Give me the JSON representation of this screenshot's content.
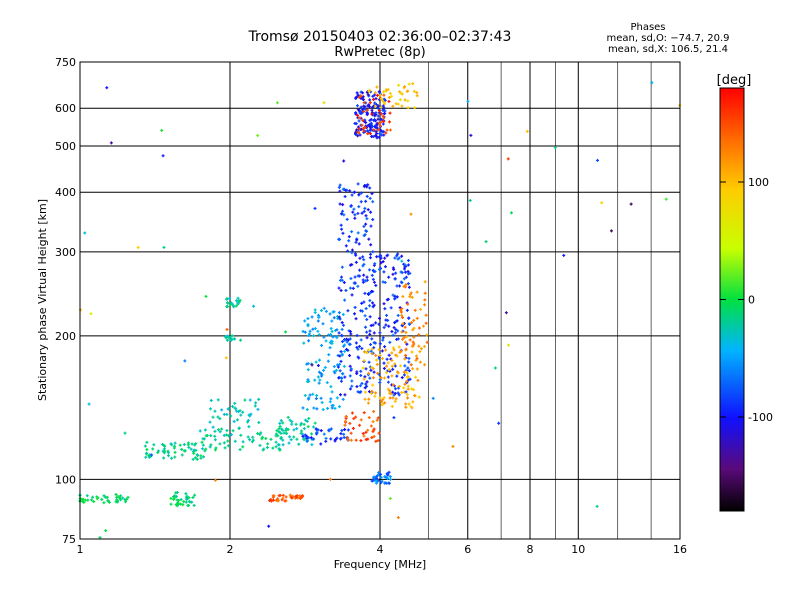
{
  "chart_data": {
    "type": "scatter",
    "title": "Tromsø 20150403 02:36:00–02:37:43",
    "subtitle": "RwPretec (8p)",
    "xlabel": "Frequency [MHz]",
    "ylabel": "Stationary phase Virtual Height [km]",
    "x_scale": "log",
    "y_scale": "log",
    "xlim": [
      1,
      16
    ],
    "ylim": [
      75,
      750
    ],
    "x_ticks": [
      1,
      2,
      4,
      6,
      8,
      10,
      16
    ],
    "y_ticks": [
      75,
      100,
      200,
      300,
      400,
      500,
      600,
      750
    ],
    "grid": true,
    "stats": {
      "heading": "Phases",
      "line_o": "mean, sd,O: −74.7, 20.9",
      "line_x": "mean, sd,X: 106.5, 21.4"
    },
    "colorbar": {
      "label": "[deg]",
      "range": [
        -180,
        180
      ],
      "ticks": [
        100,
        0,
        -100
      ]
    },
    "clusters": [
      {
        "x": [
          0.95,
          1.25
        ],
        "y": [
          89,
          93
        ],
        "phase": -10,
        "n": 45
      },
      {
        "x": [
          1.5,
          1.7
        ],
        "y": [
          88,
          94
        ],
        "phase": -15,
        "n": 35
      },
      {
        "x": [
          2.4,
          2.8
        ],
        "y": [
          90,
          93
        ],
        "phase": 145,
        "n": 40
      },
      {
        "x": [
          1.35,
          1.8
        ],
        "y": [
          110,
          120
        ],
        "phase": -20,
        "n": 60
      },
      {
        "x": [
          1.7,
          2.6
        ],
        "y": [
          115,
          128
        ],
        "phase": -25,
        "n": 70
      },
      {
        "x": [
          2.5,
          3.0
        ],
        "y": [
          118,
          135
        ],
        "phase": -30,
        "n": 50
      },
      {
        "x": [
          1.8,
          2.3
        ],
        "y": [
          128,
          148
        ],
        "phase": -40,
        "n": 40
      },
      {
        "x": [
          2.8,
          3.5
        ],
        "y": [
          118,
          128
        ],
        "phase": -95,
        "n": 40
      },
      {
        "x": [
          3.4,
          4.0
        ],
        "y": [
          120,
          140
        ],
        "phase": 150,
        "n": 40
      },
      {
        "x": [
          1.95,
          2.1
        ],
        "y": [
          230,
          240
        ],
        "phase": -30,
        "n": 20
      },
      {
        "x": [
          1.95,
          2.1
        ],
        "y": [
          195,
          200
        ],
        "phase": -30,
        "n": 15
      },
      {
        "x": [
          2.8,
          3.4
        ],
        "y": [
          140,
          230
        ],
        "phase": -60,
        "n": 120
      },
      {
        "x": [
          3.3,
          3.9
        ],
        "y": [
          150,
          420
        ],
        "phase": -100,
        "n": 220
      },
      {
        "x": [
          3.8,
          4.6
        ],
        "y": [
          150,
          300
        ],
        "phase": -100,
        "n": 160
      },
      {
        "x": [
          3.7,
          4.8
        ],
        "y": [
          140,
          190
        ],
        "phase": 110,
        "n": 100
      },
      {
        "x": [
          4.4,
          5.0
        ],
        "y": [
          170,
          260
        ],
        "phase": 125,
        "n": 60
      },
      {
        "x": [
          3.55,
          4.1
        ],
        "y": [
          520,
          650
        ],
        "phase": -110,
        "n": 160
      },
      {
        "x": [
          3.6,
          4.2
        ],
        "y": [
          530,
          640
        ],
        "phase": 160,
        "n": 40
      },
      {
        "x": [
          3.8,
          4.8
        ],
        "y": [
          600,
          680
        ],
        "phase": 95,
        "n": 40
      },
      {
        "x": [
          3.85,
          4.2
        ],
        "y": [
          98,
          104
        ],
        "phase": -80,
        "n": 35
      },
      {
        "x": [
          1.0,
          16.0
        ],
        "y": [
          75,
          700
        ],
        "phase": 0,
        "n": 60,
        "spread": true
      }
    ]
  }
}
